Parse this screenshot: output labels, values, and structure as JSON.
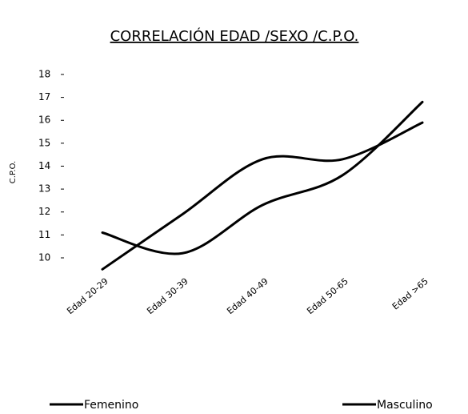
{
  "chart_data": {
    "type": "line",
    "title": "CORRELACIÓN EDAD /SEXO /C.P.O.",
    "y_label": "C.P.O.",
    "categories": [
      "Edad 20-29",
      "Edad 30-39",
      "Edad 40-49",
      "Edad 50-65",
      "Edad >65"
    ],
    "series": [
      {
        "name": "Femenino",
        "color": "#000000",
        "values": [
          9.5,
          11.9,
          14.3,
          14.3,
          15.9
        ]
      },
      {
        "name": "Masculino",
        "color": "#000000",
        "values": [
          11.1,
          10.2,
          12.3,
          13.6,
          16.8
        ]
      }
    ],
    "ylim": [
      9.5,
      18.3
    ],
    "yticks": [
      10,
      11,
      12,
      13,
      14,
      15,
      16,
      17,
      18
    ],
    "grid": false
  }
}
